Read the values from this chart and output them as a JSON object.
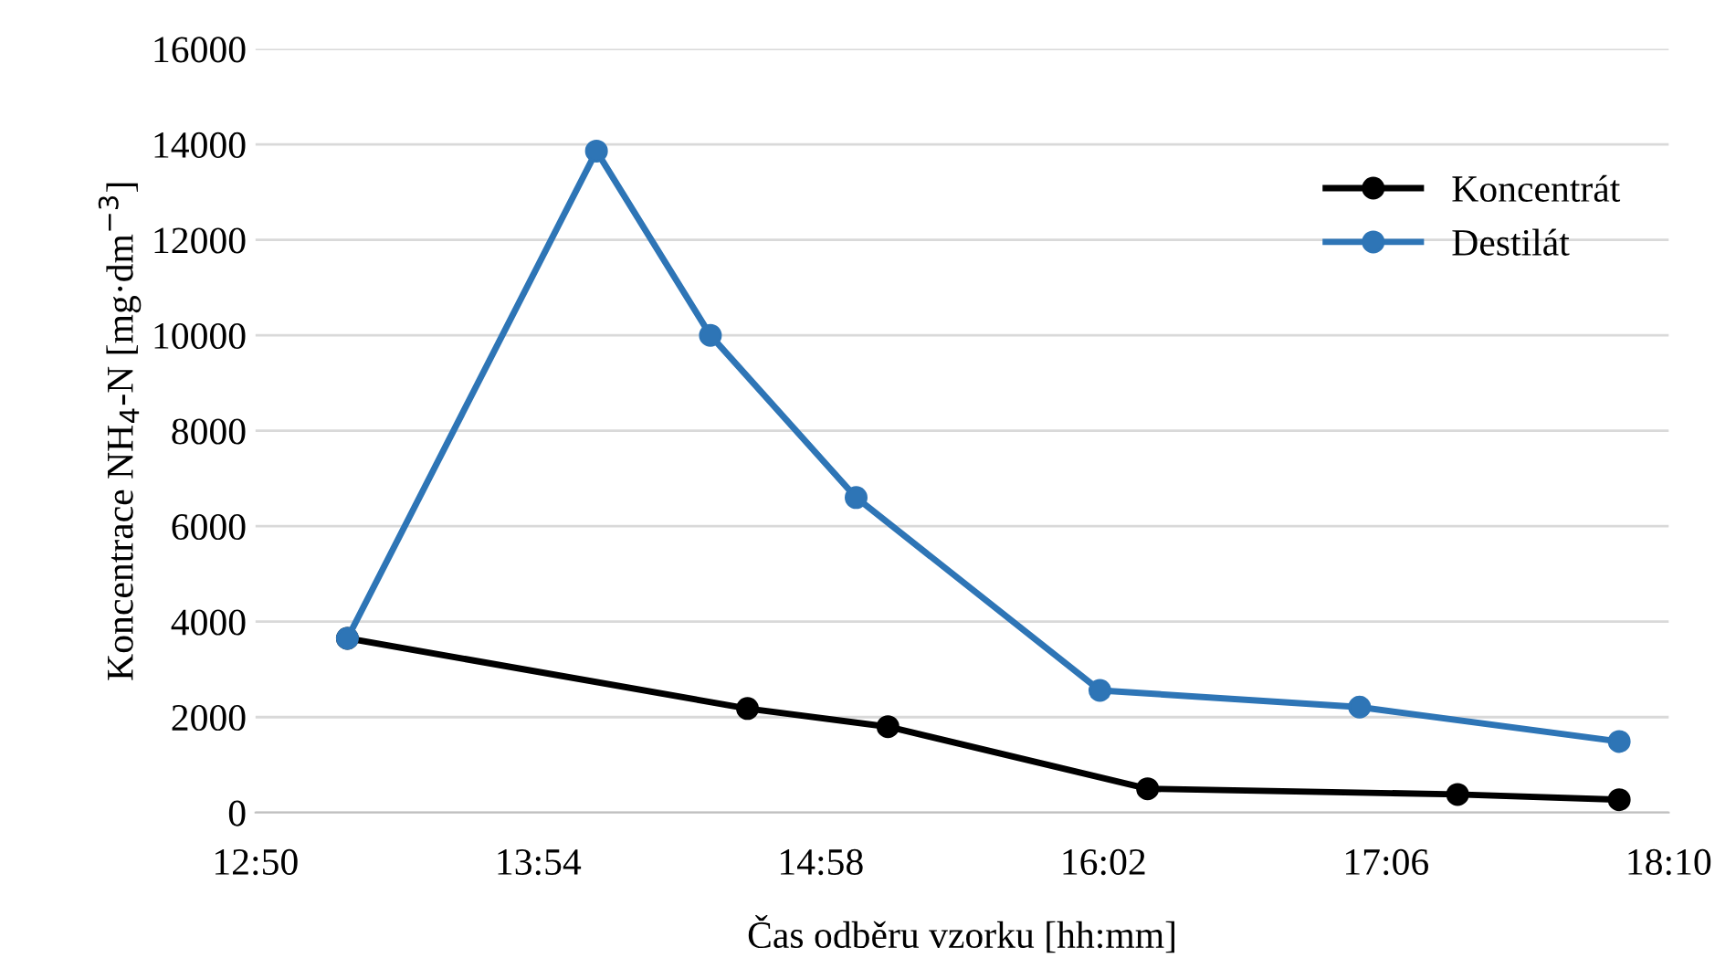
{
  "chart_data": {
    "type": "line",
    "xlabel": "Čas odběru vzorku [hh:mm]",
    "ylabel": "Koncentrace NH$_{4}$-N [mg·dm$^{−3}$]",
    "series": [
      {
        "name": "Koncentrát",
        "color": "#000000",
        "x": [
          13.18,
          14.69,
          15.22,
          16.2,
          17.37,
          17.98
        ],
        "values": [
          3650,
          2180,
          1800,
          500,
          380,
          270
        ]
      },
      {
        "name": "Destilát",
        "color": "#2e75b6",
        "x": [
          13.18,
          14.12,
          14.55,
          15.1,
          16.02,
          17.0,
          17.98
        ],
        "values": [
          3650,
          13860,
          10000,
          6600,
          2560,
          2210,
          1490
        ]
      }
    ],
    "xlim": [
      12.8333,
      18.1667
    ],
    "xticks": [
      {
        "value": 12.8333,
        "label": "12:50"
      },
      {
        "value": 13.9,
        "label": "13:54"
      },
      {
        "value": 14.9667,
        "label": "14:58"
      },
      {
        "value": 16.0333,
        "label": "16:02"
      },
      {
        "value": 17.1,
        "label": "17:06"
      },
      {
        "value": 18.1667,
        "label": "18:10"
      }
    ],
    "ylim": [
      0,
      16000
    ],
    "yticks": [
      0,
      2000,
      4000,
      6000,
      8000,
      10000,
      12000,
      14000,
      16000
    ],
    "grid": "y",
    "legend": "top right",
    "marker": "circle",
    "line_style": "solid"
  }
}
